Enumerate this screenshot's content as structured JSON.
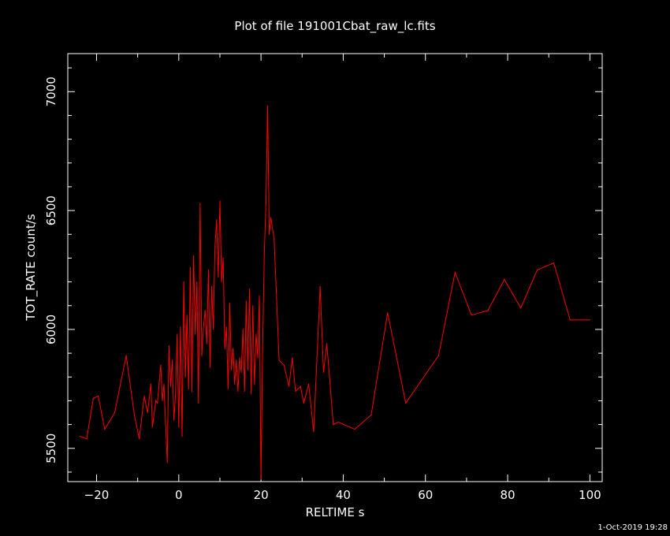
{
  "chart_data": {
    "type": "line",
    "title": "Plot of file 191001Cbat_raw_lc.fits",
    "xlabel": "RELTIME   s",
    "ylabel": "TOT_RATE   count/s",
    "xlim": [
      -27,
      103
    ],
    "ylim": [
      5360,
      7160
    ],
    "xticks": [
      -20,
      0,
      20,
      40,
      60,
      80,
      100
    ],
    "yticks": [
      5500,
      6000,
      6500,
      7000
    ],
    "grid": false,
    "footer": "1-Oct-2019 19:28",
    "colors": {
      "background": "#000000",
      "axes": "#ffffff",
      "series": "#ff0000"
    },
    "series": [
      {
        "x": [
          -24,
          -22.4,
          -20.8,
          -19.6,
          -18,
          -15.6,
          -12.8,
          -10.8,
          -9.6,
          -8.4,
          -7.6,
          -6.8,
          -6.4,
          -5.6,
          -5.2,
          -4.8,
          -4.4,
          -4.0,
          -3.6,
          -3.2,
          -2.8,
          -2.4,
          -2.0,
          -1.6,
          -1.2,
          -0.8,
          -0.4,
          0,
          0.4,
          0.8,
          1.2,
          1.6,
          2.0,
          2.4,
          2.8,
          3.2,
          3.6,
          4.0,
          4.4,
          4.8,
          5.2,
          5.6,
          6.0,
          6.4,
          6.8,
          7.2,
          7.6,
          8.0,
          8.4,
          8.8,
          9.2,
          9.6,
          10.0,
          10.4,
          10.8,
          11.2,
          11.6,
          12.0,
          12.4,
          12.8,
          13.2,
          13.6,
          14.0,
          14.4,
          14.8,
          15.2,
          15.6,
          16.0,
          16.4,
          16.8,
          17.2,
          17.6,
          18.0,
          18.4,
          18.8,
          19.2,
          19.6,
          20.0,
          20.4,
          20.8,
          21.2,
          21.6,
          22.0,
          22.4,
          23.2,
          24.4,
          25.6,
          26.8,
          27.6,
          28.4,
          29.6,
          30.4,
          31.6,
          32.8,
          34.4,
          35.2,
          36.0,
          37.6,
          38.8,
          42.8,
          46.8,
          50.8,
          55.2,
          63.2,
          67.2,
          71.2,
          75.2,
          79.2,
          83.2,
          87.2,
          91.2,
          95.2,
          100.0
        ],
        "values": [
          5550,
          5540,
          5710,
          5720,
          5580,
          5650,
          5890,
          5640,
          5540,
          5720,
          5650,
          5770,
          5590,
          5700,
          5690,
          5770,
          5850,
          5700,
          5770,
          5600,
          5440,
          5930,
          5760,
          5870,
          5620,
          5720,
          5980,
          5590,
          6010,
          5550,
          6200,
          5800,
          6060,
          5750,
          6260,
          5740,
          6310,
          5980,
          6200,
          5690,
          6530,
          5890,
          6010,
          6080,
          5940,
          6250,
          5840,
          6180,
          6000,
          6350,
          6460,
          6220,
          6540,
          6200,
          6300,
          5920,
          6010,
          5750,
          6110,
          5830,
          5920,
          5770,
          5870,
          5740,
          5880,
          5820,
          6000,
          5740,
          6120,
          5830,
          6170,
          5730,
          6100,
          5770,
          5980,
          5880,
          6140,
          5370,
          5920,
          6320,
          6530,
          6940,
          6400,
          6470,
          6380,
          5870,
          5850,
          5760,
          5880,
          5740,
          5760,
          5690,
          5770,
          5570,
          6180,
          5820,
          5940,
          5600,
          5610,
          5580,
          5640,
          6070,
          5690,
          5890,
          6240,
          6060,
          6080,
          6210,
          6090,
          6250,
          6280,
          6040,
          6040
        ]
      }
    ]
  }
}
